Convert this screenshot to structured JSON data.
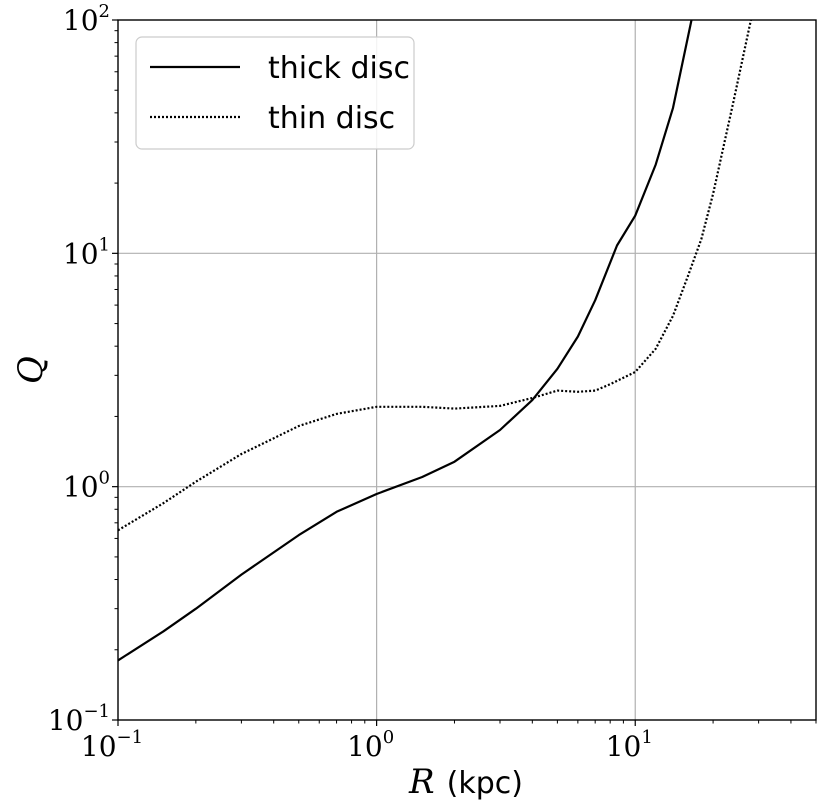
{
  "chart_data": {
    "type": "line",
    "title": "",
    "xlabel_symbol": "R",
    "xlabel_unit": "(kpc)",
    "ylabel": "Q",
    "xscale": "log",
    "yscale": "log",
    "xlim": [
      0.1,
      50
    ],
    "ylim": [
      0.1,
      100
    ],
    "grid": true,
    "legend_position": "top-left",
    "x_ticks": [
      {
        "base": "10",
        "exp": "−1",
        "value": 0.1
      },
      {
        "base": "10",
        "exp": "0",
        "value": 1
      },
      {
        "base": "10",
        "exp": "1",
        "value": 10
      }
    ],
    "y_ticks": [
      {
        "base": "10",
        "exp": "−1",
        "value": 0.1
      },
      {
        "base": "10",
        "exp": "0",
        "value": 1
      },
      {
        "base": "10",
        "exp": "1",
        "value": 10
      },
      {
        "base": "10",
        "exp": "2",
        "value": 100
      }
    ],
    "series": [
      {
        "name": "thick disc",
        "style": "solid",
        "color": "#000000",
        "x": [
          0.1,
          0.15,
          0.2,
          0.3,
          0.5,
          0.7,
          1.0,
          1.5,
          2.0,
          3.0,
          4.0,
          5.0,
          6.0,
          7.0,
          8.5,
          10.0,
          12.0,
          14.0,
          16.5
        ],
        "y": [
          0.18,
          0.24,
          0.3,
          0.42,
          0.62,
          0.78,
          0.93,
          1.1,
          1.28,
          1.75,
          2.35,
          3.2,
          4.4,
          6.3,
          10.8,
          14.5,
          24,
          42,
          100
        ]
      },
      {
        "name": "thin disc",
        "style": "dotted",
        "color": "#000000",
        "x": [
          0.1,
          0.15,
          0.2,
          0.3,
          0.5,
          0.7,
          1.0,
          1.5,
          2.0,
          3.0,
          4.0,
          5.0,
          6.0,
          7.0,
          8.0,
          10.0,
          12.0,
          14.0,
          16.0,
          18.0,
          20.0,
          24.0,
          28.0
        ],
        "y": [
          0.65,
          0.85,
          1.05,
          1.38,
          1.82,
          2.05,
          2.2,
          2.2,
          2.16,
          2.22,
          2.4,
          2.58,
          2.55,
          2.58,
          2.75,
          3.1,
          3.9,
          5.4,
          8.0,
          11.5,
          18.0,
          45.0,
          100
        ]
      }
    ]
  }
}
